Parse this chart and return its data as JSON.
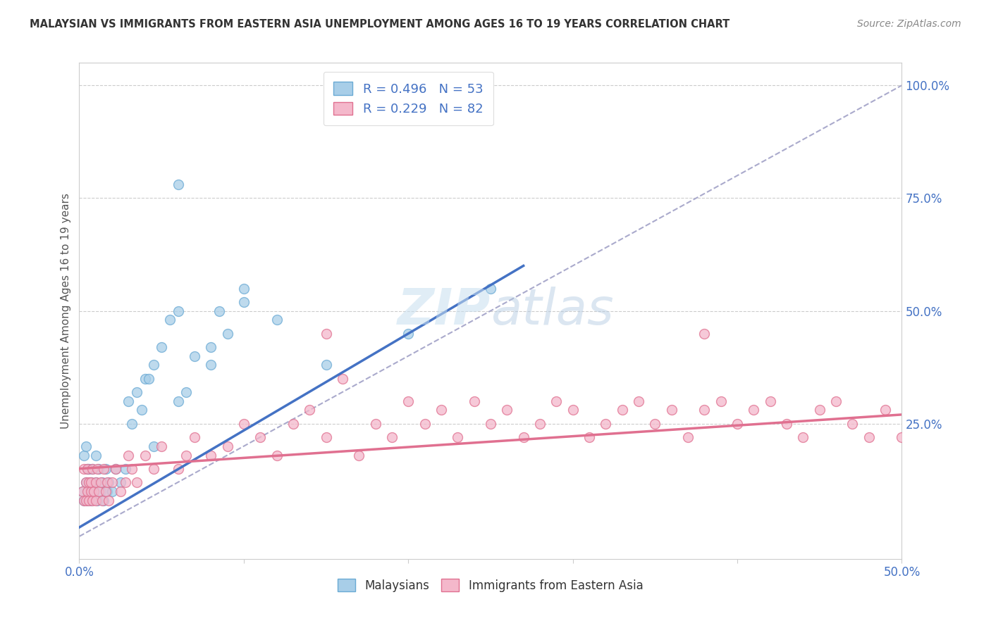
{
  "title": "MALAYSIAN VS IMMIGRANTS FROM EASTERN ASIA UNEMPLOYMENT AMONG AGES 16 TO 19 YEARS CORRELATION CHART",
  "source": "Source: ZipAtlas.com",
  "ylabel": "Unemployment Among Ages 16 to 19 years",
  "xlim": [
    0.0,
    0.5
  ],
  "ylim": [
    -0.05,
    1.05
  ],
  "xticks": [
    0.0,
    0.1,
    0.2,
    0.3,
    0.4,
    0.5
  ],
  "xticklabels": [
    "0.0%",
    "",
    "",
    "",
    "",
    "50.0%"
  ],
  "yticks_right": [
    0.0,
    0.25,
    0.5,
    0.75,
    1.0
  ],
  "yticklabels_right": [
    "",
    "25.0%",
    "50.0%",
    "75.0%",
    "100.0%"
  ],
  "legend_r1": "R = 0.496",
  "legend_n1": "N = 53",
  "legend_r2": "R = 0.229",
  "legend_n2": "N = 82",
  "color_blue": "#A8CEE8",
  "color_blue_edge": "#6AAAD4",
  "color_blue_line": "#4472C4",
  "color_pink": "#F4B8CB",
  "color_pink_edge": "#E07090",
  "color_pink_line": "#E07090",
  "color_diagonal": "#AAAACC",
  "background_color": "#FFFFFF",
  "mal_line_x0": 0.0,
  "mal_line_y0": 0.02,
  "mal_line_x1": 0.27,
  "mal_line_y1": 0.6,
  "imm_line_x0": 0.0,
  "imm_line_y0": 0.15,
  "imm_line_x1": 0.5,
  "imm_line_y1": 0.27,
  "malaysians_x": [
    0.002,
    0.003,
    0.003,
    0.004,
    0.004,
    0.005,
    0.005,
    0.006,
    0.006,
    0.007,
    0.007,
    0.008,
    0.008,
    0.009,
    0.01,
    0.01,
    0.011,
    0.012,
    0.013,
    0.014,
    0.015,
    0.016,
    0.017,
    0.018,
    0.02,
    0.022,
    0.025,
    0.028,
    0.03,
    0.032,
    0.035,
    0.038,
    0.04,
    0.042,
    0.045,
    0.05,
    0.055,
    0.06,
    0.065,
    0.07,
    0.08,
    0.085,
    0.09,
    0.1,
    0.045,
    0.06,
    0.08,
    0.1,
    0.12,
    0.15,
    0.2,
    0.25,
    0.06
  ],
  "malaysians_y": [
    0.1,
    0.08,
    0.18,
    0.12,
    0.2,
    0.08,
    0.15,
    0.15,
    0.1,
    0.08,
    0.12,
    0.15,
    0.1,
    0.1,
    0.18,
    0.12,
    0.08,
    0.15,
    0.1,
    0.12,
    0.08,
    0.15,
    0.1,
    0.12,
    0.1,
    0.15,
    0.12,
    0.15,
    0.3,
    0.25,
    0.32,
    0.28,
    0.35,
    0.35,
    0.38,
    0.42,
    0.48,
    0.3,
    0.32,
    0.4,
    0.38,
    0.5,
    0.45,
    0.52,
    0.2,
    0.5,
    0.42,
    0.55,
    0.48,
    0.38,
    0.45,
    0.55,
    0.78
  ],
  "immigrants_x": [
    0.002,
    0.003,
    0.003,
    0.004,
    0.004,
    0.005,
    0.005,
    0.006,
    0.006,
    0.007,
    0.007,
    0.008,
    0.008,
    0.009,
    0.01,
    0.01,
    0.011,
    0.012,
    0.013,
    0.014,
    0.015,
    0.016,
    0.017,
    0.018,
    0.02,
    0.022,
    0.025,
    0.028,
    0.03,
    0.032,
    0.035,
    0.04,
    0.045,
    0.05,
    0.06,
    0.065,
    0.07,
    0.08,
    0.09,
    0.1,
    0.11,
    0.12,
    0.13,
    0.14,
    0.15,
    0.16,
    0.17,
    0.18,
    0.19,
    0.2,
    0.21,
    0.22,
    0.23,
    0.24,
    0.25,
    0.26,
    0.27,
    0.28,
    0.29,
    0.3,
    0.31,
    0.32,
    0.33,
    0.34,
    0.35,
    0.36,
    0.37,
    0.38,
    0.39,
    0.4,
    0.41,
    0.42,
    0.43,
    0.44,
    0.45,
    0.46,
    0.47,
    0.48,
    0.49,
    0.5,
    0.15,
    0.38
  ],
  "immigrants_y": [
    0.1,
    0.08,
    0.15,
    0.12,
    0.08,
    0.1,
    0.15,
    0.12,
    0.08,
    0.1,
    0.12,
    0.08,
    0.15,
    0.1,
    0.12,
    0.08,
    0.15,
    0.1,
    0.12,
    0.08,
    0.15,
    0.1,
    0.12,
    0.08,
    0.12,
    0.15,
    0.1,
    0.12,
    0.18,
    0.15,
    0.12,
    0.18,
    0.15,
    0.2,
    0.15,
    0.18,
    0.22,
    0.18,
    0.2,
    0.25,
    0.22,
    0.18,
    0.25,
    0.28,
    0.22,
    0.35,
    0.18,
    0.25,
    0.22,
    0.3,
    0.25,
    0.28,
    0.22,
    0.3,
    0.25,
    0.28,
    0.22,
    0.25,
    0.3,
    0.28,
    0.22,
    0.25,
    0.28,
    0.3,
    0.25,
    0.28,
    0.22,
    0.28,
    0.3,
    0.25,
    0.28,
    0.3,
    0.25,
    0.22,
    0.28,
    0.3,
    0.25,
    0.22,
    0.28,
    0.22,
    0.45,
    0.45
  ]
}
